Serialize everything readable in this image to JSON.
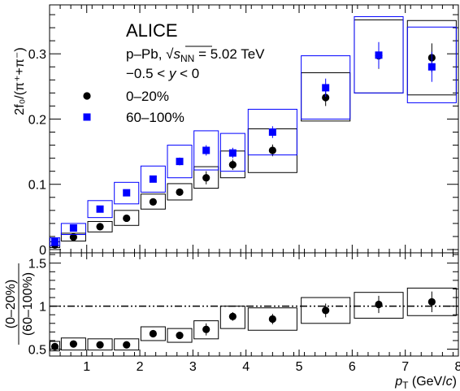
{
  "header": {
    "experiment": "ALICE",
    "system_prefix": "p–Pb, ",
    "system_sqrt": "√",
    "system_s": "s",
    "system_nn": "NN",
    "system_suffix": " = 5.02 TeV",
    "rapidity_prefix": "−0.5 < ",
    "rapidity_var": "y",
    "rapidity_suffix": " < 0"
  },
  "legend": {
    "placement": "top-left",
    "entries": [
      {
        "label": "0–20%",
        "marker": "circle",
        "color": "#000000"
      },
      {
        "label": "60–100%",
        "marker": "square",
        "color": "#0000ff"
      }
    ]
  },
  "colors": {
    "series_0_20": "#000000",
    "series_60_100": "#0000ff",
    "frame": "#000000"
  },
  "chart_data": [
    {
      "type": "scatter",
      "panel": "top",
      "ylabel": "2f₀/(π⁺+π⁻)",
      "xlim": [
        0.3,
        8
      ],
      "ylim": [
        -0.005,
        0.375
      ],
      "yticks": [
        "0",
        "0.1",
        "0.2",
        "0.3"
      ],
      "ytick_values": [
        0,
        0.1,
        0.2,
        0.3
      ],
      "grid": false,
      "bin_edges": [
        0.3,
        0.5,
        1.0,
        1.5,
        2.0,
        2.5,
        3.0,
        3.5,
        4.0,
        5.0,
        6.0,
        7.0,
        8.0
      ],
      "series": [
        {
          "name": "0–20%",
          "marker": "circle",
          "x": [
            0.4,
            0.75,
            1.25,
            1.75,
            2.25,
            2.75,
            3.25,
            3.75,
            4.5,
            5.5,
            6.5,
            7.5
          ],
          "y": [
            0.007,
            0.019,
            0.035,
            0.048,
            0.073,
            0.088,
            0.11,
            0.13,
            0.152,
            0.233,
            0.297,
            0.294
          ],
          "stat_err": [
            0.002,
            0.002,
            0.003,
            0.003,
            0.004,
            0.005,
            0.01,
            0.008,
            0.009,
            0.013,
            0.02,
            0.022
          ],
          "sys_low": [
            0.003,
            0.013,
            0.027,
            0.037,
            0.062,
            0.076,
            0.094,
            0.11,
            0.118,
            0.197,
            0.24,
            0.237
          ],
          "sys_high": [
            0.012,
            0.025,
            0.043,
            0.06,
            0.085,
            0.101,
            0.127,
            0.151,
            0.185,
            0.271,
            0.352,
            0.351
          ]
        },
        {
          "name": "60–100%",
          "marker": "square",
          "x": [
            0.4,
            0.75,
            1.25,
            1.75,
            2.25,
            2.75,
            3.25,
            3.75,
            4.5,
            5.5,
            6.5,
            7.5
          ],
          "y": [
            0.012,
            0.033,
            0.062,
            0.087,
            0.108,
            0.135,
            0.152,
            0.148,
            0.18,
            0.248,
            0.298,
            0.28
          ],
          "stat_err": [
            0.002,
            0.003,
            0.004,
            0.004,
            0.005,
            0.006,
            0.008,
            0.008,
            0.009,
            0.014,
            0.02,
            0.023
          ],
          "sys_low": [
            0.006,
            0.023,
            0.049,
            0.07,
            0.088,
            0.11,
            0.122,
            0.12,
            0.145,
            0.2,
            0.24,
            0.225
          ],
          "sys_high": [
            0.018,
            0.04,
            0.075,
            0.103,
            0.128,
            0.16,
            0.182,
            0.178,
            0.215,
            0.297,
            0.357,
            0.341
          ]
        }
      ]
    },
    {
      "type": "scatter",
      "panel": "bottom",
      "xlabel_p": "p",
      "xlabel_sub": "T",
      "xlabel_rest": " (GeV/",
      "xlabel_c": "c",
      "xlabel_close": ")",
      "ylabel_num": "(0–20%)",
      "ylabel_den": "(60–100%)",
      "xlim": [
        0.3,
        8
      ],
      "ylim": [
        0.42,
        1.62
      ],
      "xticks": [
        "1",
        "2",
        "3",
        "4",
        "5",
        "6",
        "7",
        "8"
      ],
      "xtick_values": [
        1,
        2,
        3,
        4,
        5,
        6,
        7,
        8
      ],
      "yticks": [
        "0.5",
        "1",
        "1.5"
      ],
      "ytick_values": [
        0.5,
        1,
        1.5
      ],
      "reference_line": 1,
      "grid": false,
      "bin_edges": [
        0.3,
        0.5,
        1.0,
        1.5,
        2.0,
        2.5,
        3.0,
        3.5,
        4.0,
        5.0,
        6.0,
        7.0,
        8.0
      ],
      "series": [
        {
          "name": "0–20% / 60–100%",
          "marker": "circle",
          "x": [
            0.4,
            0.75,
            1.25,
            1.75,
            2.25,
            2.75,
            3.25,
            3.75,
            4.5,
            5.5,
            6.5,
            7.5
          ],
          "y": [
            0.53,
            0.56,
            0.55,
            0.55,
            0.68,
            0.66,
            0.73,
            0.88,
            0.85,
            0.95,
            1.02,
            1.05
          ],
          "stat_err": [
            0.03,
            0.03,
            0.03,
            0.03,
            0.03,
            0.03,
            0.07,
            0.05,
            0.06,
            0.08,
            0.1,
            0.12
          ],
          "sys_low": [
            0.48,
            0.49,
            0.49,
            0.49,
            0.6,
            0.58,
            0.62,
            0.74,
            0.72,
            0.8,
            0.86,
            0.89
          ],
          "sys_high": [
            0.59,
            0.63,
            0.62,
            0.62,
            0.76,
            0.74,
            0.83,
            1.0,
            0.98,
            1.1,
            1.16,
            1.21
          ]
        }
      ]
    }
  ]
}
